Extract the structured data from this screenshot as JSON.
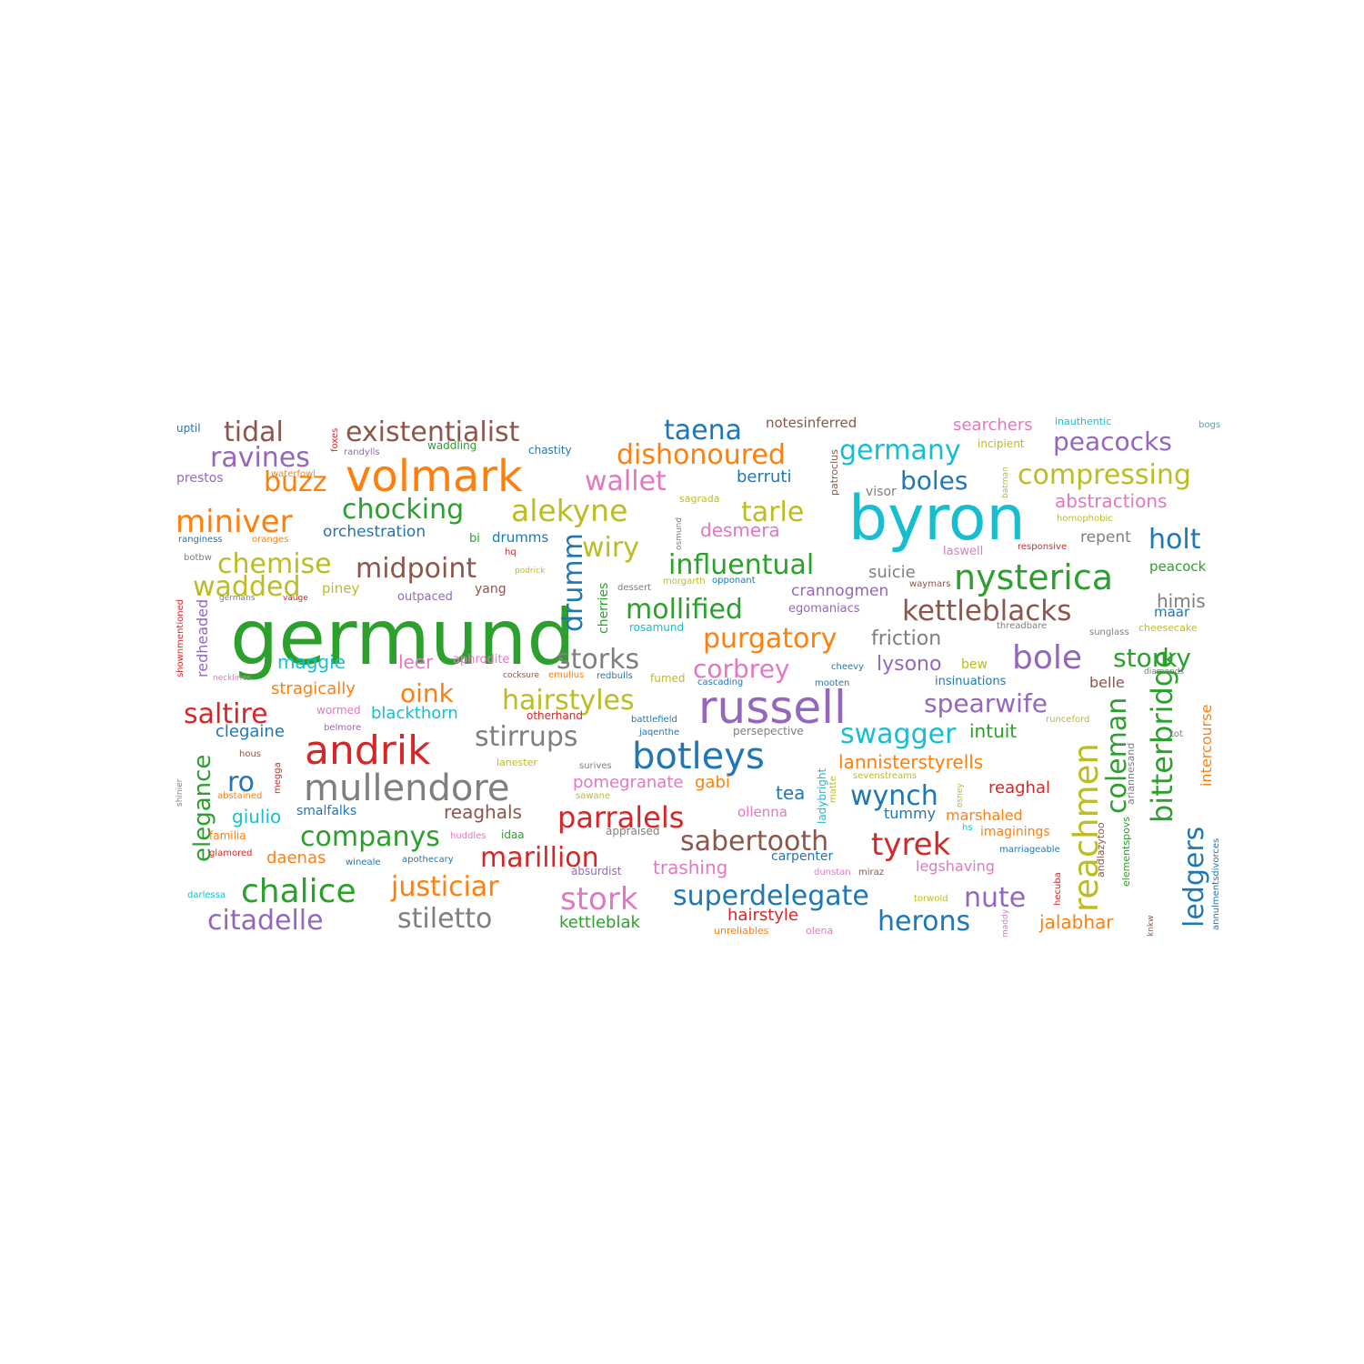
{
  "colors": {
    "blue": "#1f77b4",
    "orange": "#ff7f0e",
    "green": "#2ca02c",
    "red": "#d62728",
    "purple": "#9467bd",
    "brown": "#8c564b",
    "pink": "#e377c2",
    "gray": "#7f7f7f",
    "olive": "#bcbd22",
    "cyan": "#17becf"
  },
  "words": [
    {
      "text": "germund",
      "color": "green"
    },
    {
      "text": "byron",
      "color": "cyan"
    },
    {
      "text": "volmark",
      "color": "orange"
    },
    {
      "text": "russell",
      "color": "purple"
    },
    {
      "text": "andrik",
      "color": "red"
    },
    {
      "text": "botleys",
      "color": "blue"
    },
    {
      "text": "mullendore",
      "color": "gray"
    },
    {
      "text": "nysterica",
      "color": "green"
    },
    {
      "text": "kettleblacks",
      "color": "brown"
    },
    {
      "text": "reachmen",
      "color": "olive"
    },
    {
      "text": "alekyne",
      "color": "olive"
    },
    {
      "text": "miniver",
      "color": "orange"
    },
    {
      "text": "existentialist",
      "color": "brown"
    },
    {
      "text": "tidal",
      "color": "brown"
    },
    {
      "text": "taena",
      "color": "blue"
    },
    {
      "text": "dishonoured",
      "color": "orange"
    },
    {
      "text": "germany",
      "color": "cyan"
    },
    {
      "text": "peacocks",
      "color": "purple"
    },
    {
      "text": "compressing",
      "color": "olive"
    },
    {
      "text": "ravines",
      "color": "purple"
    },
    {
      "text": "buzz",
      "color": "orange"
    },
    {
      "text": "wallet",
      "color": "pink"
    },
    {
      "text": "chocking",
      "color": "green"
    },
    {
      "text": "tarle",
      "color": "olive"
    },
    {
      "text": "boles",
      "color": "blue"
    },
    {
      "text": "holt",
      "color": "blue"
    },
    {
      "text": "chemise",
      "color": "olive"
    },
    {
      "text": "midpoint",
      "color": "brown"
    },
    {
      "text": "influentual",
      "color": "green"
    },
    {
      "text": "wiry",
      "color": "olive"
    },
    {
      "text": "drumm",
      "color": "blue"
    },
    {
      "text": "wadded",
      "color": "olive"
    },
    {
      "text": "mollified",
      "color": "green"
    },
    {
      "text": "purgatory",
      "color": "orange"
    },
    {
      "text": "bole",
      "color": "purple"
    },
    {
      "text": "storky",
      "color": "green"
    },
    {
      "text": "storks",
      "color": "gray"
    },
    {
      "text": "corbrey",
      "color": "pink"
    },
    {
      "text": "hairstyles",
      "color": "olive"
    },
    {
      "text": "spearwife",
      "color": "purple"
    },
    {
      "text": "saltire",
      "color": "red"
    },
    {
      "text": "oink",
      "color": "orange"
    },
    {
      "text": "stirrups",
      "color": "gray"
    },
    {
      "text": "swagger",
      "color": "cyan"
    },
    {
      "text": "bitterbridge",
      "color": "green"
    },
    {
      "text": "coleman",
      "color": "green"
    },
    {
      "text": "ledgers",
      "color": "blue"
    },
    {
      "text": "elegance",
      "color": "green"
    },
    {
      "text": "ro",
      "color": "blue"
    },
    {
      "text": "wynch",
      "color": "blue"
    },
    {
      "text": "parralels",
      "color": "red"
    },
    {
      "text": "companys",
      "color": "green"
    },
    {
      "text": "sabertooth",
      "color": "brown"
    },
    {
      "text": "tyrek",
      "color": "red"
    },
    {
      "text": "marillion",
      "color": "red"
    },
    {
      "text": "chalice",
      "color": "green"
    },
    {
      "text": "justiciar",
      "color": "orange"
    },
    {
      "text": "stork",
      "color": "pink"
    },
    {
      "text": "superdelegate",
      "color": "blue"
    },
    {
      "text": "nute",
      "color": "purple"
    },
    {
      "text": "citadelle",
      "color": "purple"
    },
    {
      "text": "stiletto",
      "color": "gray"
    },
    {
      "text": "herons",
      "color": "blue"
    },
    {
      "text": "lannisterstyrells",
      "color": "orange"
    },
    {
      "text": "orchestration",
      "color": "blue"
    },
    {
      "text": "berruti",
      "color": "blue"
    },
    {
      "text": "abstractions",
      "color": "pink"
    },
    {
      "text": "desmera",
      "color": "pink"
    },
    {
      "text": "searchers",
      "color": "pink"
    },
    {
      "text": "notesinferred",
      "color": "brown"
    },
    {
      "text": "maggie",
      "color": "cyan"
    },
    {
      "text": "leer",
      "color": "pink"
    },
    {
      "text": "lysono",
      "color": "purple"
    },
    {
      "text": "friction",
      "color": "gray"
    },
    {
      "text": "suicie",
      "color": "gray"
    },
    {
      "text": "crannogmen",
      "color": "purple"
    },
    {
      "text": "himis",
      "color": "gray"
    },
    {
      "text": "stragically",
      "color": "orange"
    },
    {
      "text": "blackthorn",
      "color": "cyan"
    },
    {
      "text": "clegaine",
      "color": "blue"
    },
    {
      "text": "intuit",
      "color": "green"
    },
    {
      "text": "intercourse",
      "color": "orange"
    },
    {
      "text": "pomegranate",
      "color": "pink"
    },
    {
      "text": "gabi",
      "color": "orange"
    },
    {
      "text": "tea",
      "color": "blue"
    },
    {
      "text": "reaghal",
      "color": "red"
    },
    {
      "text": "giulio",
      "color": "cyan"
    },
    {
      "text": "reaghals",
      "color": "brown"
    },
    {
      "text": "smalfalks",
      "color": "blue"
    },
    {
      "text": "tummy",
      "color": "blue"
    },
    {
      "text": "marshaled",
      "color": "orange"
    },
    {
      "text": "daenas",
      "color": "orange"
    },
    {
      "text": "ollenna",
      "color": "pink"
    },
    {
      "text": "imaginings",
      "color": "orange"
    },
    {
      "text": "trashing",
      "color": "pink"
    },
    {
      "text": "carpenter",
      "color": "blue"
    },
    {
      "text": "legshaving",
      "color": "pink"
    },
    {
      "text": "hairstyle",
      "color": "red"
    },
    {
      "text": "kettleblak",
      "color": "green"
    },
    {
      "text": "jalabhar",
      "color": "orange"
    },
    {
      "text": "repent",
      "color": "gray"
    },
    {
      "text": "peacock",
      "color": "green"
    },
    {
      "text": "maar",
      "color": "blue"
    },
    {
      "text": "belle",
      "color": "brown"
    },
    {
      "text": "insinuations",
      "color": "blue"
    },
    {
      "text": "bew",
      "color": "olive"
    },
    {
      "text": "egomaniacs",
      "color": "purple"
    },
    {
      "text": "piney",
      "color": "olive"
    },
    {
      "text": "yang",
      "color": "brown"
    },
    {
      "text": "outpaced",
      "color": "purple"
    },
    {
      "text": "drumms",
      "color": "blue"
    },
    {
      "text": "bi",
      "color": "green"
    },
    {
      "text": "rosamund",
      "color": "cyan"
    },
    {
      "text": "laswell",
      "color": "pink"
    },
    {
      "text": "cherries",
      "color": "green"
    },
    {
      "text": "prestos",
      "color": "purple"
    },
    {
      "text": "waddling",
      "color": "green"
    },
    {
      "text": "chastity",
      "color": "blue"
    },
    {
      "text": "incipient",
      "color": "olive"
    },
    {
      "text": "inauthentic",
      "color": "cyan"
    },
    {
      "text": "bogs",
      "color": "cyan"
    },
    {
      "text": "uptil",
      "color": "blue"
    },
    {
      "text": "foxes",
      "color": "red"
    },
    {
      "text": "randylls",
      "color": "purple"
    },
    {
      "text": "waterfowl",
      "color": "orange"
    },
    {
      "text": "sagrada",
      "color": "olive"
    },
    {
      "text": "visor",
      "color": "gray"
    },
    {
      "text": "patroclus",
      "color": "brown"
    },
    {
      "text": "batman",
      "color": "olive"
    },
    {
      "text": "homophobic",
      "color": "olive"
    },
    {
      "text": "ranginess",
      "color": "blue"
    },
    {
      "text": "oranges",
      "color": "orange"
    },
    {
      "text": "hq",
      "color": "red"
    },
    {
      "text": "osmund",
      "color": "gray"
    },
    {
      "text": "responsive",
      "color": "red"
    },
    {
      "text": "botbw",
      "color": "gray"
    },
    {
      "text": "podrick",
      "color": "olive"
    },
    {
      "text": "morgarth",
      "color": "olive"
    },
    {
      "text": "opponant",
      "color": "blue"
    },
    {
      "text": "waymars",
      "color": "brown"
    },
    {
      "text": "dessert",
      "color": "gray"
    },
    {
      "text": "germans",
      "color": "gray"
    },
    {
      "text": "vauge",
      "color": "red"
    },
    {
      "text": "shownmentioned",
      "color": "red"
    },
    {
      "text": "redheaded",
      "color": "purple"
    },
    {
      "text": "threadbare",
      "color": "gray"
    },
    {
      "text": "sunglass",
      "color": "gray"
    },
    {
      "text": "cheesecake",
      "color": "olive"
    },
    {
      "text": "aphrodite",
      "color": "pink"
    },
    {
      "text": "necklines",
      "color": "pink"
    },
    {
      "text": "cocksure",
      "color": "brown"
    },
    {
      "text": "emulius",
      "color": "orange"
    },
    {
      "text": "redbulls",
      "color": "blue"
    },
    {
      "text": "fumed",
      "color": "olive"
    },
    {
      "text": "cascading",
      "color": "blue"
    },
    {
      "text": "cheevy",
      "color": "blue"
    },
    {
      "text": "mooten",
      "color": "blue"
    },
    {
      "text": "diamonds",
      "color": "gray"
    },
    {
      "text": "wormed",
      "color": "pink"
    },
    {
      "text": "otherhand",
      "color": "red"
    },
    {
      "text": "battlefield",
      "color": "blue"
    },
    {
      "text": "persepective",
      "color": "gray"
    },
    {
      "text": "runceford",
      "color": "olive"
    },
    {
      "text": "tot",
      "color": "gray"
    },
    {
      "text": "belmore",
      "color": "purple"
    },
    {
      "text": "jaqenthe",
      "color": "blue"
    },
    {
      "text": "hous",
      "color": "brown"
    },
    {
      "text": "lanester",
      "color": "olive"
    },
    {
      "text": "surives",
      "color": "gray"
    },
    {
      "text": "ladybright",
      "color": "cyan"
    },
    {
      "text": "sevenstreams",
      "color": "olive"
    },
    {
      "text": "osney",
      "color": "olive"
    },
    {
      "text": "ariannesand",
      "color": "gray"
    },
    {
      "text": "shinier",
      "color": "gray"
    },
    {
      "text": "megga",
      "color": "red"
    },
    {
      "text": "abstained",
      "color": "orange"
    },
    {
      "text": "sawane",
      "color": "olive"
    },
    {
      "text": "matte",
      "color": "olive"
    },
    {
      "text": "andlazytoo",
      "color": "brown"
    },
    {
      "text": "elementspovs",
      "color": "green"
    },
    {
      "text": "familia",
      "color": "orange"
    },
    {
      "text": "huddles",
      "color": "pink"
    },
    {
      "text": "idaa",
      "color": "green"
    },
    {
      "text": "appraised",
      "color": "gray"
    },
    {
      "text": "hs",
      "color": "cyan"
    },
    {
      "text": "glamored",
      "color": "red"
    },
    {
      "text": "wineale",
      "color": "blue"
    },
    {
      "text": "apothecary",
      "color": "blue"
    },
    {
      "text": "absurdist",
      "color": "purple"
    },
    {
      "text": "dunstan",
      "color": "pink"
    },
    {
      "text": "miraz",
      "color": "brown"
    },
    {
      "text": "marriageable",
      "color": "blue"
    },
    {
      "text": "hecuba",
      "color": "red"
    },
    {
      "text": "darlessa",
      "color": "cyan"
    },
    {
      "text": "torwold",
      "color": "olive"
    },
    {
      "text": "maddy",
      "color": "pink"
    },
    {
      "text": "unreliables",
      "color": "orange"
    },
    {
      "text": "olena",
      "color": "pink"
    },
    {
      "text": "knkw",
      "color": "brown"
    },
    {
      "text": "annulmentsdivorces",
      "color": "blue"
    }
  ]
}
